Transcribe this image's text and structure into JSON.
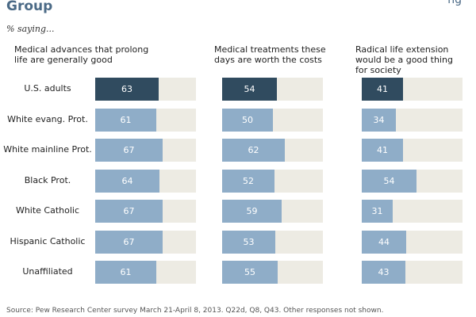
{
  "header": {
    "title": "Group",
    "subtitle": "% saying...",
    "corner_marks": "ng"
  },
  "colors": {
    "primary_bar": "#304b5f",
    "group_bar": "#8fadc8",
    "track": "#edebe3",
    "title": "#4b6a86"
  },
  "chart_data": {
    "type": "bar",
    "orientation": "horizontal",
    "title": "Group",
    "subtitle": "% saying...",
    "categories": [
      "U.S. adults",
      "White evang. Prot.",
      "White mainline Prot.",
      "Black Prot.",
      "White Catholic",
      "Hispanic Catholic",
      "Unaffiliated"
    ],
    "xlim": [
      0,
      100
    ],
    "series": [
      {
        "name": "Medical advances that prolong life are generally good",
        "values": [
          63,
          61,
          67,
          64,
          67,
          67,
          61
        ]
      },
      {
        "name": "Medical treatments these days are worth the costs",
        "values": [
          54,
          50,
          62,
          52,
          59,
          53,
          55
        ]
      },
      {
        "name": "Radical life extension would be a good thing for society",
        "values": [
          41,
          34,
          41,
          54,
          31,
          44,
          43
        ]
      }
    ]
  },
  "source": "Source: Pew Research Center survey March 21-April 8, 2013. Q22d, Q8, Q43. Other responses not shown."
}
